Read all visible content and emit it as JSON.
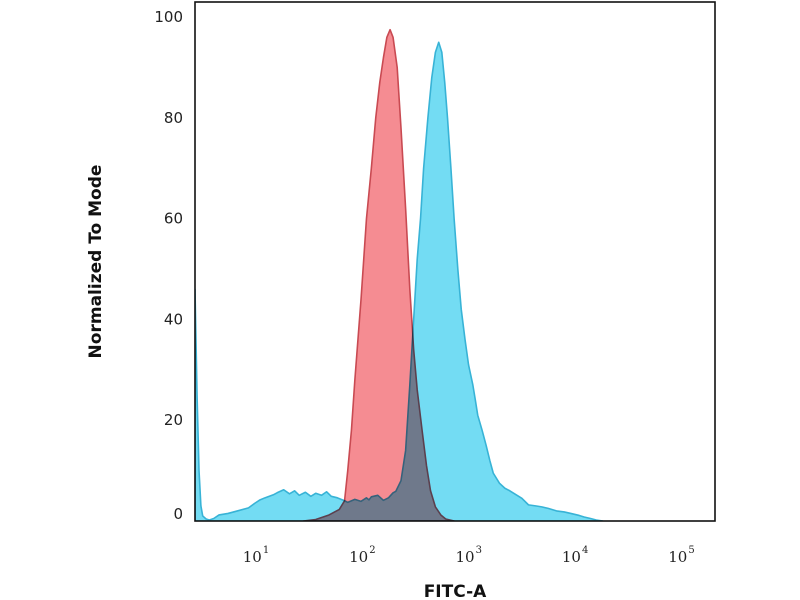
{
  "chart_data": {
    "type": "area",
    "title": "",
    "xlabel": "FITC-A",
    "ylabel": "Normalized To Mode",
    "xscale": "log",
    "xlim": [
      2.2,
      170000
    ],
    "ylim": [
      0,
      103
    ],
    "yticks": [
      {
        "value": 0,
        "label": "0"
      },
      {
        "value": 20,
        "label": "20"
      },
      {
        "value": 40,
        "label": "40"
      },
      {
        "value": 60,
        "label": "60"
      },
      {
        "value": 80,
        "label": "80"
      },
      {
        "value": 100,
        "label": "100"
      }
    ],
    "xticks": [
      {
        "value": 10,
        "base": "10",
        "exp": "1"
      },
      {
        "value": 100,
        "base": "10",
        "exp": "2"
      },
      {
        "value": 1000,
        "base": "10",
        "exp": "3"
      },
      {
        "value": 10000,
        "base": "10",
        "exp": "4"
      },
      {
        "value": 100000,
        "base": "10",
        "exp": "5"
      }
    ],
    "series": [
      {
        "color": "#f4868c",
        "stroke": "#c94a52",
        "points": [
          [
            23,
            0
          ],
          [
            30,
            0.3
          ],
          [
            40,
            1.2
          ],
          [
            50,
            2.3
          ],
          [
            56,
            4
          ],
          [
            60,
            10
          ],
          [
            65,
            18
          ],
          [
            70,
            28
          ],
          [
            80,
            44
          ],
          [
            90,
            60
          ],
          [
            100,
            70
          ],
          [
            110,
            80
          ],
          [
            120,
            87
          ],
          [
            130,
            92
          ],
          [
            140,
            96
          ],
          [
            150,
            97.5
          ],
          [
            160,
            96
          ],
          [
            175,
            90
          ],
          [
            190,
            78
          ],
          [
            210,
            62
          ],
          [
            230,
            46
          ],
          [
            250,
            34
          ],
          [
            270,
            26
          ],
          [
            300,
            18
          ],
          [
            330,
            11
          ],
          [
            360,
            6
          ],
          [
            400,
            2.8
          ],
          [
            450,
            1.2
          ],
          [
            500,
            0.4
          ],
          [
            600,
            0
          ]
        ]
      },
      {
        "color": "#5ad6f1",
        "stroke": "#38b3d6",
        "points": [
          [
            2.2,
            46
          ],
          [
            2.3,
            25
          ],
          [
            2.4,
            10
          ],
          [
            2.5,
            3
          ],
          [
            2.6,
            1
          ],
          [
            2.8,
            0.4
          ],
          [
            3,
            0.2
          ],
          [
            3.3,
            0.5
          ],
          [
            3.7,
            1.2
          ],
          [
            4.5,
            1.5
          ],
          [
            5.5,
            2
          ],
          [
            7,
            2.6
          ],
          [
            8,
            3.5
          ],
          [
            9,
            4.2
          ],
          [
            10,
            4.6
          ],
          [
            12,
            5.2
          ],
          [
            13,
            5.6
          ],
          [
            15,
            6.2
          ],
          [
            17,
            5.4
          ],
          [
            19,
            6
          ],
          [
            21,
            5.1
          ],
          [
            24,
            5.7
          ],
          [
            27,
            4.9
          ],
          [
            30,
            5.5
          ],
          [
            34,
            5.1
          ],
          [
            38,
            5.8
          ],
          [
            42,
            4.9
          ],
          [
            48,
            4.6
          ],
          [
            55,
            4.1
          ],
          [
            60,
            3.7
          ],
          [
            70,
            4.3
          ],
          [
            80,
            3.9
          ],
          [
            90,
            4.6
          ],
          [
            95,
            4.2
          ],
          [
            100,
            4.8
          ],
          [
            115,
            5.1
          ],
          [
            130,
            4.1
          ],
          [
            145,
            4.6
          ],
          [
            160,
            5.6
          ],
          [
            170,
            5.9
          ],
          [
            190,
            8
          ],
          [
            210,
            14
          ],
          [
            230,
            27
          ],
          [
            250,
            40
          ],
          [
            270,
            52
          ],
          [
            290,
            60
          ],
          [
            310,
            70
          ],
          [
            340,
            80
          ],
          [
            370,
            88
          ],
          [
            400,
            93
          ],
          [
            430,
            95
          ],
          [
            460,
            93
          ],
          [
            490,
            87
          ],
          [
            520,
            80
          ],
          [
            560,
            70
          ],
          [
            600,
            60
          ],
          [
            650,
            50
          ],
          [
            700,
            42
          ],
          [
            760,
            36
          ],
          [
            820,
            31
          ],
          [
            900,
            27
          ],
          [
            950,
            24
          ],
          [
            1000,
            21
          ],
          [
            1100,
            18
          ],
          [
            1200,
            15
          ],
          [
            1300,
            12
          ],
          [
            1400,
            9.5
          ],
          [
            1600,
            7.5
          ],
          [
            1800,
            6.5
          ],
          [
            2000,
            6
          ],
          [
            2300,
            5.2
          ],
          [
            2600,
            4.5
          ],
          [
            3000,
            3.2
          ],
          [
            3500,
            3
          ],
          [
            4000,
            2.8
          ],
          [
            4600,
            2.5
          ],
          [
            5500,
            2
          ],
          [
            6500,
            1.8
          ],
          [
            7500,
            1.5
          ],
          [
            9000,
            1.1
          ],
          [
            10000,
            0.8
          ],
          [
            11500,
            0.5
          ],
          [
            13000,
            0.2
          ],
          [
            15000,
            0
          ]
        ]
      }
    ]
  }
}
